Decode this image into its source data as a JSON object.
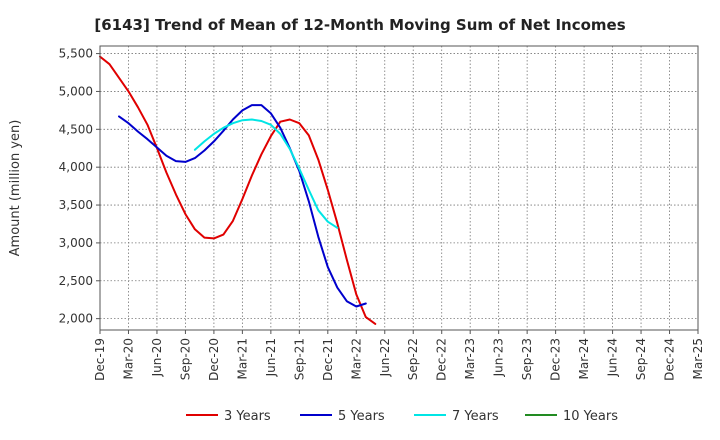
{
  "chart_data": {
    "type": "line",
    "title": "[6143]  Trend of Mean of 12-Month Moving Sum of Net Incomes",
    "xlabel": "",
    "ylabel": "Amount (million yen)",
    "ylim": [
      1850,
      5600
    ],
    "grid": true,
    "legend_position": "bottom",
    "x_ticks": [
      "Dec-19",
      "Mar-20",
      "Jun-20",
      "Sep-20",
      "Dec-20",
      "Mar-21",
      "Jun-21",
      "Sep-21",
      "Dec-21",
      "Mar-22",
      "Jun-22",
      "Sep-22",
      "Dec-22",
      "Mar-23",
      "Jun-23",
      "Sep-23",
      "Dec-23",
      "Mar-24",
      "Jun-24",
      "Sep-24",
      "Dec-24",
      "Mar-25"
    ],
    "y_ticks": [
      2000,
      2500,
      3000,
      3500,
      4000,
      4500,
      5000,
      5500
    ],
    "y_tick_labels": [
      "2,000",
      "2,500",
      "3,000",
      "3,500",
      "4,000",
      "4,500",
      "5,000",
      "5,500"
    ],
    "series": [
      {
        "name": "3 Years",
        "color": "#e00000",
        "points": [
          [
            0,
            5460
          ],
          [
            1,
            5360
          ],
          [
            2,
            5180
          ],
          [
            3,
            5000
          ],
          [
            4,
            4790
          ],
          [
            5,
            4560
          ],
          [
            6,
            4250
          ],
          [
            7,
            3930
          ],
          [
            8,
            3640
          ],
          [
            9,
            3380
          ],
          [
            10,
            3180
          ],
          [
            11,
            3070
          ],
          [
            12,
            3060
          ],
          [
            13,
            3110
          ],
          [
            14,
            3290
          ],
          [
            15,
            3580
          ],
          [
            16,
            3890
          ],
          [
            17,
            4170
          ],
          [
            18,
            4410
          ],
          [
            19,
            4600
          ],
          [
            20,
            4630
          ],
          [
            21,
            4580
          ],
          [
            22,
            4420
          ],
          [
            23,
            4100
          ],
          [
            24,
            3700
          ],
          [
            25,
            3260
          ],
          [
            26,
            2780
          ],
          [
            27,
            2320
          ],
          [
            28,
            2020
          ],
          [
            29,
            1930
          ]
        ]
      },
      {
        "name": "5 Years",
        "color": "#0000cc",
        "points": [
          [
            2,
            4670
          ],
          [
            3,
            4580
          ],
          [
            4,
            4470
          ],
          [
            5,
            4370
          ],
          [
            6,
            4260
          ],
          [
            7,
            4150
          ],
          [
            8,
            4080
          ],
          [
            9,
            4070
          ],
          [
            10,
            4120
          ],
          [
            11,
            4220
          ],
          [
            12,
            4340
          ],
          [
            13,
            4480
          ],
          [
            14,
            4630
          ],
          [
            15,
            4750
          ],
          [
            16,
            4820
          ],
          [
            17,
            4820
          ],
          [
            18,
            4710
          ],
          [
            19,
            4520
          ],
          [
            20,
            4250
          ],
          [
            21,
            3950
          ],
          [
            22,
            3550
          ],
          [
            23,
            3080
          ],
          [
            24,
            2680
          ],
          [
            25,
            2410
          ],
          [
            26,
            2230
          ],
          [
            27,
            2160
          ],
          [
            28,
            2200
          ]
        ]
      },
      {
        "name": "7 Years",
        "color": "#00e5e5",
        "points": [
          [
            10,
            4230
          ],
          [
            11,
            4340
          ],
          [
            12,
            4440
          ],
          [
            13,
            4520
          ],
          [
            14,
            4580
          ],
          [
            15,
            4620
          ],
          [
            16,
            4630
          ],
          [
            17,
            4610
          ],
          [
            18,
            4560
          ],
          [
            19,
            4440
          ],
          [
            20,
            4240
          ],
          [
            21,
            3980
          ],
          [
            22,
            3700
          ],
          [
            23,
            3430
          ],
          [
            24,
            3280
          ],
          [
            25,
            3200
          ]
        ]
      },
      {
        "name": "10 Years",
        "color": "#228b22",
        "points": []
      }
    ]
  }
}
